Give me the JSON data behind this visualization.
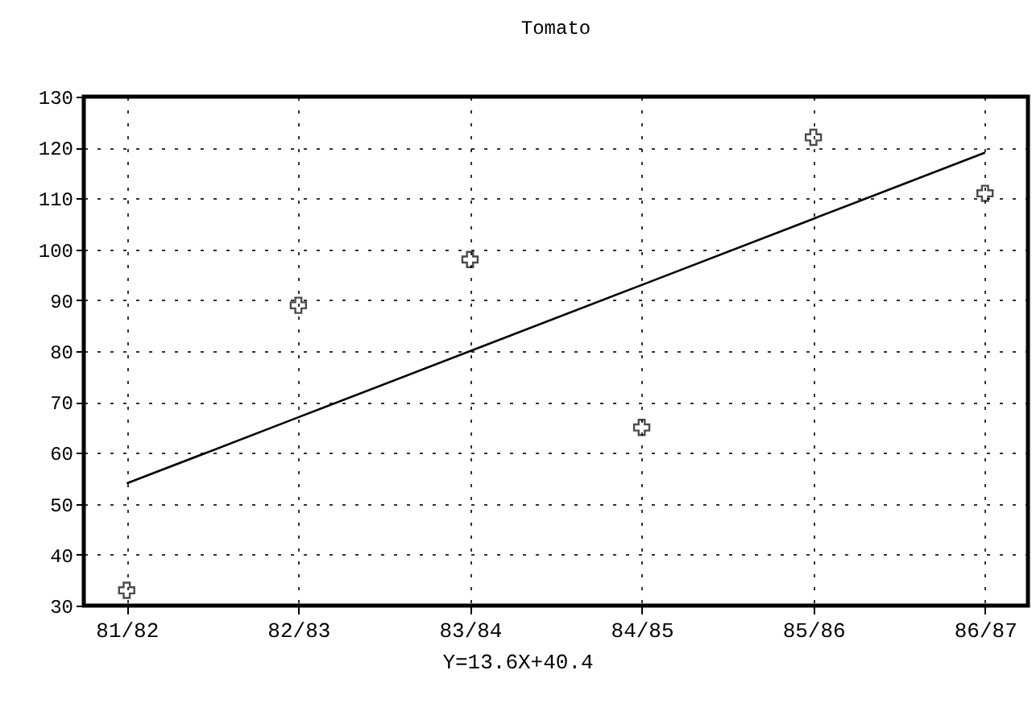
{
  "chart_data": {
    "type": "scatter",
    "title": "Tomato",
    "categories": [
      "81/82",
      "82/83",
      "83/84",
      "84/85",
      "85/86",
      "86/87"
    ],
    "series": [
      {
        "marker": "cross",
        "color": "#000000",
        "values": [
          33,
          89,
          98,
          65,
          122,
          111
        ]
      },
      {
        "type": "line",
        "marker": "none",
        "line_style": "solid",
        "color": "#000000",
        "values": [
          54,
          67,
          80,
          93,
          106,
          119
        ]
      }
    ],
    "ylim": [
      30,
      130
    ],
    "yticks": [
      30,
      40,
      50,
      60,
      70,
      80,
      90,
      100,
      110,
      120,
      130
    ],
    "grid": true,
    "annotations": [
      "Y=13.6X+40.4"
    ]
  }
}
